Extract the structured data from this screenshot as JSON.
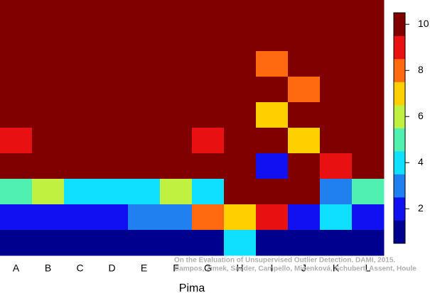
{
  "chart_data": {
    "type": "heatmap",
    "x_label": "Pima",
    "categories": [
      "A",
      "B",
      "C",
      "D",
      "E",
      "F",
      "G",
      "H",
      "I",
      "J",
      "K",
      "L"
    ],
    "z": [
      [
        10,
        10,
        10,
        10,
        10,
        10,
        10,
        10,
        10,
        10,
        10,
        10
      ],
      [
        10,
        10,
        10,
        10,
        10,
        10,
        10,
        10,
        10,
        10,
        10,
        10
      ],
      [
        10,
        10,
        10,
        10,
        10,
        10,
        10,
        10,
        8,
        10,
        10,
        10
      ],
      [
        10,
        10,
        10,
        10,
        10,
        10,
        10,
        10,
        10,
        8,
        10,
        10
      ],
      [
        10,
        10,
        10,
        10,
        10,
        10,
        10,
        10,
        7,
        10,
        10,
        10
      ],
      [
        9,
        10,
        10,
        10,
        10,
        10,
        9,
        10,
        10,
        7,
        10,
        10
      ],
      [
        10,
        10,
        10,
        10,
        10,
        10,
        10,
        10,
        2,
        10,
        9,
        10
      ],
      [
        5,
        6,
        4,
        4,
        4,
        6,
        4,
        10,
        10,
        10,
        3,
        5
      ],
      [
        2,
        2,
        2,
        2,
        3,
        3,
        8,
        7,
        9,
        2,
        4,
        2
      ],
      [
        1,
        1,
        1,
        1,
        1,
        1,
        1,
        4,
        1,
        1,
        1,
        1
      ]
    ],
    "colors": [
      "#00008f",
      "#1010f0",
      "#2080f0",
      "#10e0ff",
      "#50f0b0",
      "#c0f040",
      "#ffd000",
      "#ff6a10",
      "#e81010",
      "#800000"
    ],
    "clim": [
      0.5,
      10.5
    ],
    "cticks": [
      2,
      4,
      6,
      8,
      10
    ],
    "annotation": [
      "On the Evaluation of Unsupervised Outlier Detection. DAMI, 2015.",
      "Campos, Zimek, Sander, Campello, Micenková, Schubert, Assent, Houle"
    ]
  }
}
